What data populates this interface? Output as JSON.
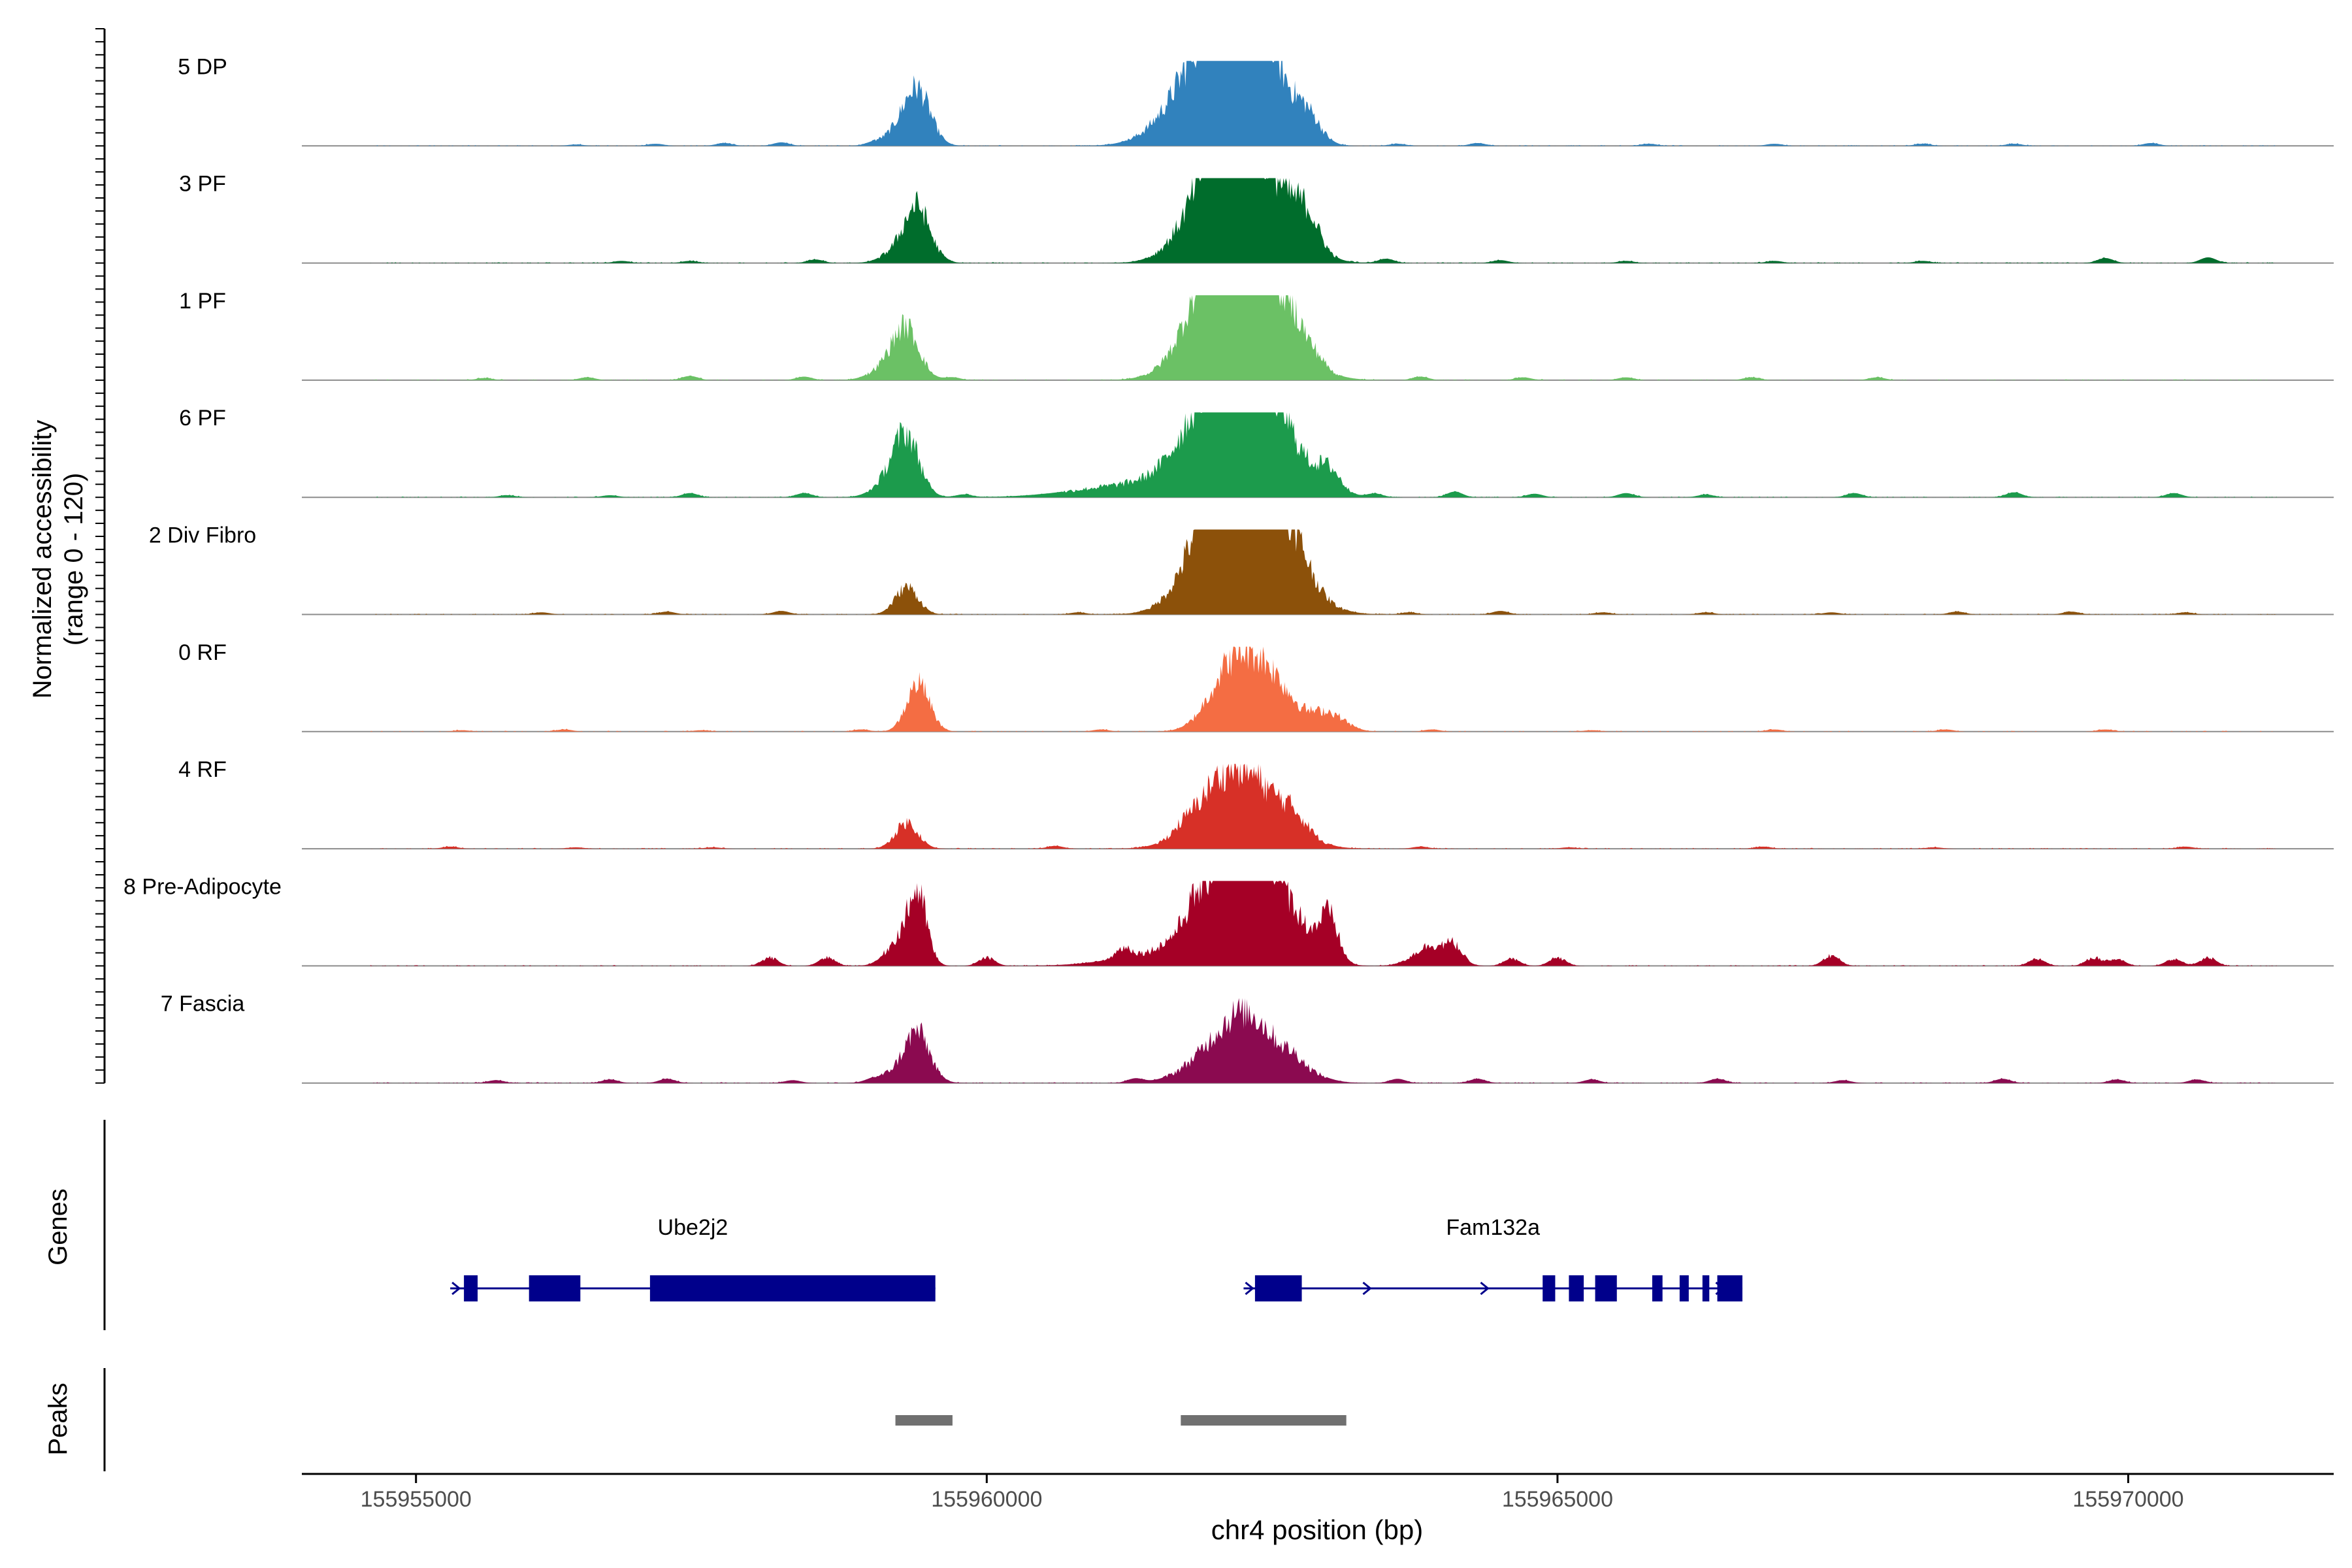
{
  "chart_data": {
    "type": "area",
    "title": "",
    "ylabel": "Normalized accessibility",
    "ylabel_sub": "(range 0 - 120)",
    "ylim": [
      0,
      120
    ],
    "xlabel": "chr4 position (bp)",
    "xlim": [
      155954000,
      155971800
    ],
    "x_ticks": [
      {
        "value": 155955000,
        "label": "155955000"
      },
      {
        "value": 155960000,
        "label": "155960000"
      },
      {
        "value": 155965000,
        "label": "155965000"
      },
      {
        "value": 155970000,
        "label": "155970000"
      }
    ],
    "tracks": [
      {
        "name": "5 DP",
        "color": "#3182BD",
        "background": [
          [
            156400,
            2
          ],
          [
            157100,
            3
          ],
          [
            157700,
            4
          ],
          [
            158200,
            5
          ],
          [
            159000,
            3
          ],
          [
            163600,
            3
          ],
          [
            164300,
            4
          ],
          [
            165800,
            3
          ],
          [
            166900,
            3
          ],
          [
            168200,
            3
          ],
          [
            169000,
            3
          ],
          [
            170200,
            4
          ]
        ],
        "peaks": [
          [
            155959400,
            60,
            110
          ],
          [
            155959300,
            30,
            150
          ],
          [
            155962000,
            150,
            320
          ],
          [
            155962300,
            180,
            220
          ],
          [
            155962800,
            40,
            120
          ]
        ]
      },
      {
        "name": "3 PF",
        "color": "#006D2C",
        "background": [
          [
            156800,
            3
          ],
          [
            157400,
            3
          ],
          [
            158500,
            5
          ],
          [
            159600,
            3
          ],
          [
            163500,
            6
          ],
          [
            164500,
            4
          ],
          [
            165600,
            3
          ],
          [
            166900,
            3
          ],
          [
            168200,
            3
          ],
          [
            169800,
            7
          ],
          [
            170700,
            8
          ]
        ],
        "peaks": [
          [
            155959400,
            60,
            100
          ],
          [
            155959300,
            30,
            150
          ],
          [
            155962300,
            160,
            300
          ],
          [
            155962000,
            80,
            260
          ],
          [
            155962800,
            45,
            110
          ]
        ]
      },
      {
        "name": "1 PF",
        "color": "#6BC165",
        "background": [
          [
            155600,
            3
          ],
          [
            156500,
            4
          ],
          [
            157400,
            6
          ],
          [
            158400,
            5
          ],
          [
            159700,
            4
          ],
          [
            162900,
            10
          ],
          [
            163800,
            5
          ],
          [
            164700,
            4
          ],
          [
            165600,
            4
          ],
          [
            166700,
            4
          ],
          [
            167800,
            4
          ]
        ],
        "peaks": [
          [
            155959300,
            55,
            110
          ],
          [
            155959200,
            28,
            160
          ],
          [
            155962250,
            180,
            330
          ],
          [
            155962100,
            100,
            260
          ],
          [
            155962700,
            25,
            100
          ]
        ]
      },
      {
        "name": "6 PF",
        "color": "#1C9B4C",
        "background": [
          [
            155800,
            3
          ],
          [
            156700,
            3
          ],
          [
            157400,
            6
          ],
          [
            158400,
            6
          ],
          [
            159800,
            4
          ],
          [
            163400,
            5
          ],
          [
            164100,
            8
          ],
          [
            164800,
            5
          ],
          [
            165600,
            6
          ],
          [
            166300,
            4
          ],
          [
            167600,
            6
          ],
          [
            169000,
            7
          ],
          [
            170400,
            6
          ]
        ],
        "peaks": [
          [
            155959300,
            70,
            110
          ],
          [
            155959200,
            30,
            150
          ],
          [
            155962300,
            180,
            320
          ],
          [
            155962000,
            80,
            300
          ],
          [
            155963000,
            30,
            100
          ],
          [
            155961300,
            18,
            500
          ]
        ]
      },
      {
        "name": "2 Div Fibro",
        "color": "#8C510A",
        "background": [
          [
            156100,
            3
          ],
          [
            157200,
            4
          ],
          [
            158200,
            5
          ],
          [
            160800,
            3
          ],
          [
            161800,
            5
          ],
          [
            163700,
            3
          ],
          [
            164500,
            5
          ],
          [
            165400,
            3
          ],
          [
            166300,
            3
          ],
          [
            167400,
            3
          ],
          [
            168500,
            4
          ],
          [
            169500,
            4
          ],
          [
            170500,
            3
          ]
        ],
        "peaks": [
          [
            155959300,
            40,
            100
          ],
          [
            155962300,
            220,
            320
          ],
          [
            155962000,
            60,
            250
          ],
          [
            155962700,
            25,
            130
          ]
        ]
      },
      {
        "name": "0 RF",
        "color": "#F46D43",
        "background": [
          [
            155400,
            2
          ],
          [
            156300,
            3
          ],
          [
            157500,
            2
          ],
          [
            158900,
            3
          ],
          [
            161000,
            3
          ],
          [
            163900,
            3
          ],
          [
            165300,
            2
          ],
          [
            166900,
            3
          ],
          [
            168400,
            3
          ],
          [
            169800,
            3
          ]
        ],
        "peaks": [
          [
            155959400,
            70,
            100
          ],
          [
            155962400,
            95,
            240
          ],
          [
            155962100,
            55,
            180
          ],
          [
            155963000,
            25,
            140
          ]
        ]
      },
      {
        "name": "4 RF",
        "color": "#D73027",
        "background": [
          [
            155300,
            3
          ],
          [
            156400,
            2
          ],
          [
            157600,
            2
          ],
          [
            160600,
            4
          ],
          [
            161700,
            5
          ],
          [
            163800,
            3
          ],
          [
            165100,
            2
          ],
          [
            166800,
            3
          ],
          [
            168300,
            2
          ],
          [
            170500,
            3
          ]
        ],
        "peaks": [
          [
            155959300,
            38,
            100
          ],
          [
            155962300,
            90,
            300
          ],
          [
            155962000,
            45,
            250
          ],
          [
            155962700,
            20,
            120
          ]
        ]
      },
      {
        "name": "8 Pre-Adipocyte",
        "color": "#A50026",
        "background": [
          [
            158100,
            12
          ],
          [
            158600,
            12
          ],
          [
            160000,
            12
          ],
          [
            161200,
            15
          ],
          [
            161800,
            12
          ],
          [
            164100,
            20
          ],
          [
            164600,
            10
          ],
          [
            165000,
            12
          ],
          [
            167400,
            15
          ],
          [
            169200,
            10
          ],
          [
            169700,
            12
          ],
          [
            169900,
            10
          ],
          [
            170400,
            10
          ],
          [
            170700,
            12
          ]
        ],
        "peaks": [
          [
            155959400,
            90,
            80
          ],
          [
            155959250,
            40,
            120
          ],
          [
            155962300,
            180,
            220
          ],
          [
            155962000,
            80,
            260
          ],
          [
            155962700,
            50,
            200
          ],
          [
            155963000,
            60,
            80
          ],
          [
            155963900,
            30,
            150
          ],
          [
            155961500,
            15,
            400
          ]
        ]
      },
      {
        "name": "7 Fascia",
        "color": "#8B0A50",
        "background": [
          [
            155700,
            4
          ],
          [
            156700,
            5
          ],
          [
            157200,
            6
          ],
          [
            158300,
            4
          ],
          [
            159000,
            4
          ],
          [
            161300,
            6
          ],
          [
            162700,
            8
          ],
          [
            163600,
            6
          ],
          [
            164300,
            6
          ],
          [
            165300,
            5
          ],
          [
            166400,
            6
          ],
          [
            167500,
            4
          ],
          [
            168900,
            6
          ],
          [
            169900,
            5
          ],
          [
            170600,
            5
          ]
        ],
        "peaks": [
          [
            155959400,
            55,
            100
          ],
          [
            155959300,
            25,
            160
          ],
          [
            155962300,
            80,
            220
          ],
          [
            155962000,
            40,
            250
          ],
          [
            155962700,
            20,
            200
          ]
        ]
      }
    ],
    "genes_panel_label": "Genes",
    "genes": [
      {
        "name": "Ube2j2",
        "strand": "+",
        "start": 155955300,
        "end": 155959550,
        "exons": [
          [
            155955420,
            155955540
          ],
          [
            155955990,
            155956440
          ],
          [
            155957050,
            155959550
          ]
        ]
      },
      {
        "name": "Fam132a",
        "strand": "+",
        "start": 155962250,
        "end": 155966620,
        "exons": [
          [
            155962350,
            155962760
          ],
          [
            155964870,
            155964980
          ],
          [
            155965100,
            155965230
          ],
          [
            155965330,
            155965520
          ],
          [
            155965830,
            155965920
          ],
          [
            155966070,
            155966150
          ],
          [
            155966270,
            155966330
          ],
          [
            155966400,
            155966620
          ]
        ]
      }
    ],
    "gene_color": "#00008B",
    "peaks_panel_label": "Peaks",
    "called_peaks": [
      [
        155959200,
        155959700
      ],
      [
        155961700,
        155963150
      ]
    ],
    "peak_color": "#707070"
  }
}
